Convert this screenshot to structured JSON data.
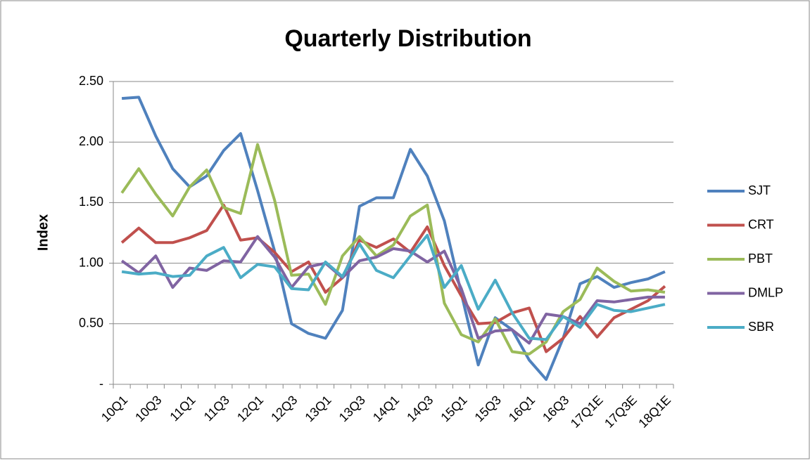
{
  "chart_data": {
    "type": "line",
    "title": "Quarterly Distribution",
    "y_label": "Index",
    "categories": [
      "10Q1",
      null,
      "10Q3",
      null,
      "11Q1",
      null,
      "11Q3",
      null,
      "12Q1",
      null,
      "12Q3",
      null,
      "13Q1",
      null,
      "13Q3",
      null,
      "14Q1",
      null,
      "14Q3",
      null,
      "15Q1",
      null,
      "15Q3",
      null,
      "16Q1",
      null,
      "16Q3",
      null,
      "17Q1E",
      null,
      "17Q3E",
      null,
      "18Q1E"
    ],
    "series": [
      {
        "name": "SJT",
        "color": "#4f81bd",
        "values": [
          2.36,
          2.37,
          2.05,
          1.78,
          1.63,
          1.72,
          1.93,
          2.07,
          1.6,
          1.1,
          0.5,
          0.42,
          0.38,
          0.61,
          1.47,
          1.54,
          1.54,
          1.94,
          1.72,
          1.35,
          0.75,
          0.16,
          0.55,
          0.45,
          0.2,
          0.04,
          0.38,
          0.83,
          0.89,
          0.8,
          0.84,
          0.87,
          0.93
        ]
      },
      {
        "name": "CRT",
        "color": "#c0504d",
        "values": [
          1.17,
          1.29,
          1.17,
          1.17,
          1.21,
          1.27,
          1.48,
          1.19,
          1.21,
          1.09,
          0.93,
          1.01,
          0.76,
          0.88,
          1.19,
          1.13,
          1.2,
          1.09,
          1.3,
          0.98,
          0.73,
          0.5,
          0.51,
          0.59,
          0.63,
          0.27,
          0.38,
          0.56,
          0.39,
          0.55,
          0.62,
          0.69,
          0.81
        ]
      },
      {
        "name": "PBT",
        "color": "#9bbb59",
        "values": [
          1.58,
          1.78,
          1.57,
          1.39,
          1.63,
          1.77,
          1.46,
          1.41,
          1.98,
          1.52,
          0.9,
          0.91,
          0.66,
          1.06,
          1.22,
          1.06,
          1.15,
          1.39,
          1.48,
          0.67,
          0.41,
          0.35,
          0.54,
          0.27,
          0.25,
          0.35,
          0.6,
          0.7,
          0.96,
          0.85,
          0.77,
          0.78,
          0.76
        ]
      },
      {
        "name": "DMLP",
        "color": "#8064a2",
        "values": [
          1.02,
          0.92,
          1.06,
          0.8,
          0.96,
          0.94,
          1.02,
          1.01,
          1.22,
          1.05,
          0.8,
          0.97,
          1.0,
          0.88,
          1.02,
          1.05,
          1.12,
          1.1,
          1.01,
          1.1,
          0.79,
          0.38,
          0.44,
          0.45,
          0.34,
          0.58,
          0.56,
          0.5,
          0.69,
          0.68,
          0.7,
          0.72,
          0.72
        ]
      },
      {
        "name": "SBR",
        "color": "#4bacc6",
        "values": [
          0.93,
          0.91,
          0.92,
          0.89,
          0.9,
          1.06,
          1.13,
          0.88,
          0.99,
          0.97,
          0.79,
          0.78,
          1.01,
          0.89,
          1.16,
          0.94,
          0.88,
          1.06,
          1.23,
          0.8,
          0.98,
          0.62,
          0.86,
          0.59,
          0.38,
          0.37,
          0.56,
          0.47,
          0.66,
          0.61,
          0.6,
          0.63,
          0.66
        ]
      }
    ],
    "ylim": [
      0,
      2.5
    ],
    "yticks": [
      {
        "value": 0,
        "label": "-"
      },
      {
        "value": 0.5,
        "label": "0.50"
      },
      {
        "value": 1,
        "label": "1.00"
      },
      {
        "value": 1.5,
        "label": "1.50"
      },
      {
        "value": 2,
        "label": "2.00"
      },
      {
        "value": 2.5,
        "label": "2.50"
      }
    ],
    "grid": true,
    "legend": "right"
  }
}
